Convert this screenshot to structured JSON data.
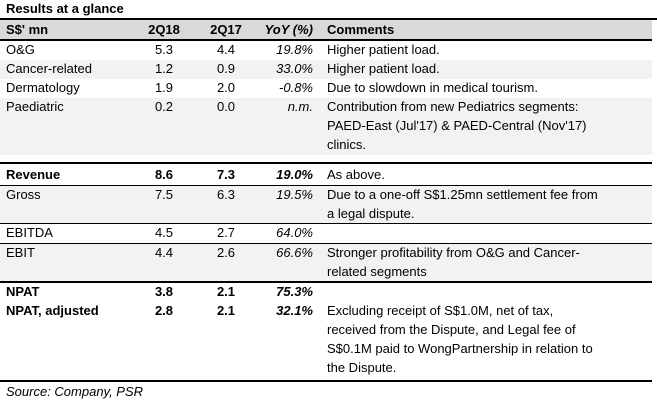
{
  "title": "Results at a glance",
  "header": {
    "label": "S$' mn",
    "col1": "2Q18",
    "col2": "2Q17",
    "col3": "YoY (%)",
    "col4": "Comments"
  },
  "rows": [
    {
      "label": "O&G",
      "v1": "5.3",
      "v2": "4.4",
      "yoy": "19.8%",
      "comment": [
        "Higher patient load."
      ]
    },
    {
      "label": "Cancer-related",
      "v1": "1.2",
      "v2": "0.9",
      "yoy": "33.0%",
      "comment": [
        "Higher patient load."
      ]
    },
    {
      "label": "Dermatology",
      "v1": "1.9",
      "v2": "2.0",
      "yoy": "-0.8%",
      "comment": [
        "Due to slowdown in medical tourism."
      ]
    },
    {
      "label": "Paediatric",
      "v1": "0.2",
      "v2": "0.0",
      "yoy": "n.m.",
      "comment": [
        "Contribution from new Pediatrics segments:",
        "PAED-East (Jul'17) & PAED-Central (Nov'17)",
        "clinics."
      ]
    },
    {
      "label": "Revenue",
      "v1": "8.6",
      "v2": "7.3",
      "yoy": "19.0%",
      "comment": [
        "As above."
      ]
    },
    {
      "label": "Gross",
      "v1": "7.5",
      "v2": "6.3",
      "yoy": "19.5%",
      "comment": [
        "Due to a one-off S$1.25mn settlement fee from",
        "a legal dispute."
      ]
    },
    {
      "label": "EBITDA",
      "v1": "4.5",
      "v2": "2.7",
      "yoy": "64.0%",
      "comment": []
    },
    {
      "label": "EBIT",
      "v1": "4.4",
      "v2": "2.6",
      "yoy": "66.6%",
      "comment": [
        "Stronger profitability from O&G and Cancer-",
        "related segments"
      ]
    },
    {
      "label": "NPAT",
      "v1": "3.8",
      "v2": "2.1",
      "yoy": "75.3%",
      "comment": []
    },
    {
      "label": "NPAT, adjusted",
      "v1": "2.8",
      "v2": "2.1",
      "yoy": "32.1%",
      "comment": [
        "Excluding receipt of S$1.0M, net of tax,",
        "received from the Dispute, and Legal fee of",
        "S$0.1M paid to WongPartnership in relation to",
        "the Dispute."
      ]
    }
  ],
  "source": "Source: Company, PSR"
}
